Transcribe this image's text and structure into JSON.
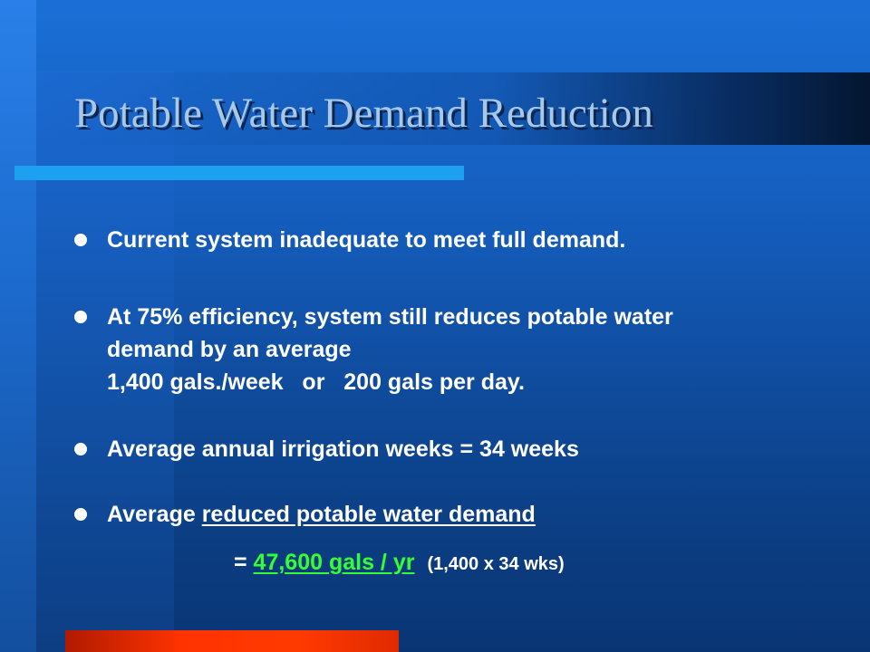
{
  "slide": {
    "title": "Potable Water Demand Reduction",
    "bullets": [
      {
        "text": "Current system inadequate to meet full demand."
      },
      {
        "line1": "At 75% efficiency, system still reduces potable water",
        "line2": "demand by an average",
        "line3": "1,400 gals./week   or   200 gals per day."
      },
      {
        "text": "Average annual irrigation weeks = 34 weeks"
      },
      {
        "prefix": "Average ",
        "underlined": "reduced potable water demand"
      }
    ],
    "result": {
      "prefix": "= ",
      "value": "47,600 gals / yr",
      "note": "(1,400 x 34 wks)"
    }
  },
  "colors": {
    "background": "#155fc0",
    "title_text": "#a8c8e8",
    "rule": "#1ea0f0",
    "accent_bar": "#ff3300",
    "highlight": "#33ff33"
  }
}
